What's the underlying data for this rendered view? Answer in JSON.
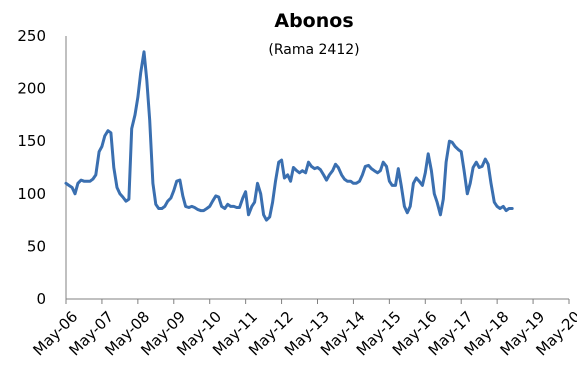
{
  "chart_data": {
    "type": "line",
    "title": "Abonos",
    "subtitle": "(Rama 2412)",
    "xlabel": "",
    "ylabel": "",
    "ylim": [
      0,
      250
    ],
    "yticks": [
      0,
      50,
      100,
      150,
      200,
      250
    ],
    "x_start": "May-06",
    "x_end": "May-20",
    "xticks": [
      "May-06",
      "May-07",
      "May-08",
      "May-09",
      "May-10",
      "May-11",
      "May-12",
      "May-13",
      "May-14",
      "May-15",
      "May-16",
      "May-17",
      "May-18",
      "May-19",
      "May-20"
    ],
    "grid": false,
    "legend": "none",
    "colors": {
      "line": "#3a6fb0",
      "axis": "#808080"
    },
    "series": [
      {
        "name": "",
        "points": [
          [
            0.0,
            110
          ],
          [
            0.08,
            108
          ],
          [
            0.17,
            106
          ],
          [
            0.25,
            100
          ],
          [
            0.33,
            110
          ],
          [
            0.42,
            113
          ],
          [
            0.5,
            112
          ],
          [
            0.58,
            112
          ],
          [
            0.67,
            112
          ],
          [
            0.75,
            114
          ],
          [
            0.83,
            118
          ],
          [
            0.92,
            140
          ],
          [
            1.0,
            145
          ],
          [
            1.08,
            155
          ],
          [
            1.17,
            160
          ],
          [
            1.25,
            158
          ],
          [
            1.33,
            125
          ],
          [
            1.42,
            106
          ],
          [
            1.5,
            100
          ],
          [
            1.58,
            97
          ],
          [
            1.67,
            93
          ],
          [
            1.75,
            95
          ],
          [
            1.83,
            162
          ],
          [
            1.92,
            175
          ],
          [
            2.0,
            192
          ],
          [
            2.08,
            215
          ],
          [
            2.17,
            235
          ],
          [
            2.25,
            208
          ],
          [
            2.33,
            170
          ],
          [
            2.42,
            110
          ],
          [
            2.5,
            90
          ],
          [
            2.58,
            86
          ],
          [
            2.67,
            86
          ],
          [
            2.75,
            88
          ],
          [
            2.83,
            93
          ],
          [
            2.92,
            96
          ],
          [
            3.0,
            103
          ],
          [
            3.08,
            112
          ],
          [
            3.17,
            113
          ],
          [
            3.25,
            98
          ],
          [
            3.33,
            88
          ],
          [
            3.42,
            87
          ],
          [
            3.5,
            88
          ],
          [
            3.58,
            87
          ],
          [
            3.67,
            85
          ],
          [
            3.75,
            84
          ],
          [
            3.83,
            84
          ],
          [
            3.92,
            86
          ],
          [
            4.0,
            88
          ],
          [
            4.08,
            93
          ],
          [
            4.17,
            98
          ],
          [
            4.25,
            97
          ],
          [
            4.33,
            88
          ],
          [
            4.42,
            86
          ],
          [
            4.5,
            90
          ],
          [
            4.58,
            88
          ],
          [
            4.67,
            88
          ],
          [
            4.75,
            87
          ],
          [
            4.83,
            87
          ],
          [
            4.92,
            96
          ],
          [
            5.0,
            102
          ],
          [
            5.08,
            80
          ],
          [
            5.17,
            88
          ],
          [
            5.25,
            92
          ],
          [
            5.33,
            110
          ],
          [
            5.42,
            100
          ],
          [
            5.5,
            80
          ],
          [
            5.58,
            75
          ],
          [
            5.67,
            78
          ],
          [
            5.75,
            92
          ],
          [
            5.83,
            112
          ],
          [
            5.92,
            130
          ],
          [
            6.0,
            132
          ],
          [
            6.08,
            115
          ],
          [
            6.17,
            118
          ],
          [
            6.25,
            112
          ],
          [
            6.33,
            125
          ],
          [
            6.42,
            122
          ],
          [
            6.5,
            120
          ],
          [
            6.58,
            122
          ],
          [
            6.67,
            120
          ],
          [
            6.75,
            130
          ],
          [
            6.83,
            126
          ],
          [
            6.92,
            124
          ],
          [
            7.0,
            125
          ],
          [
            7.08,
            123
          ],
          [
            7.17,
            118
          ],
          [
            7.25,
            113
          ],
          [
            7.33,
            118
          ],
          [
            7.42,
            122
          ],
          [
            7.5,
            128
          ],
          [
            7.58,
            125
          ],
          [
            7.67,
            118
          ],
          [
            7.75,
            114
          ],
          [
            7.83,
            112
          ],
          [
            7.92,
            112
          ],
          [
            8.0,
            110
          ],
          [
            8.08,
            110
          ],
          [
            8.17,
            112
          ],
          [
            8.25,
            118
          ],
          [
            8.33,
            126
          ],
          [
            8.42,
            127
          ],
          [
            8.5,
            124
          ],
          [
            8.58,
            122
          ],
          [
            8.67,
            120
          ],
          [
            8.75,
            122
          ],
          [
            8.83,
            130
          ],
          [
            8.92,
            126
          ],
          [
            9.0,
            112
          ],
          [
            9.08,
            108
          ],
          [
            9.17,
            108
          ],
          [
            9.25,
            124
          ],
          [
            9.33,
            108
          ],
          [
            9.42,
            88
          ],
          [
            9.5,
            82
          ],
          [
            9.58,
            88
          ],
          [
            9.67,
            110
          ],
          [
            9.75,
            115
          ],
          [
            9.83,
            112
          ],
          [
            9.92,
            108
          ],
          [
            10.0,
            120
          ],
          [
            10.08,
            138
          ],
          [
            10.17,
            122
          ],
          [
            10.25,
            100
          ],
          [
            10.33,
            92
          ],
          [
            10.42,
            80
          ],
          [
            10.5,
            95
          ],
          [
            10.58,
            130
          ],
          [
            10.67,
            150
          ],
          [
            10.75,
            149
          ],
          [
            10.83,
            145
          ],
          [
            10.92,
            142
          ],
          [
            11.0,
            140
          ],
          [
            11.08,
            122
          ],
          [
            11.17,
            100
          ],
          [
            11.25,
            110
          ],
          [
            11.33,
            125
          ],
          [
            11.42,
            130
          ],
          [
            11.5,
            125
          ],
          [
            11.58,
            126
          ],
          [
            11.67,
            133
          ],
          [
            11.75,
            128
          ],
          [
            11.83,
            110
          ],
          [
            11.92,
            92
          ],
          [
            12.0,
            88
          ],
          [
            12.08,
            86
          ],
          [
            12.17,
            88
          ],
          [
            12.25,
            84
          ],
          [
            12.33,
            86
          ],
          [
            12.42,
            86
          ]
        ]
      }
    ]
  }
}
